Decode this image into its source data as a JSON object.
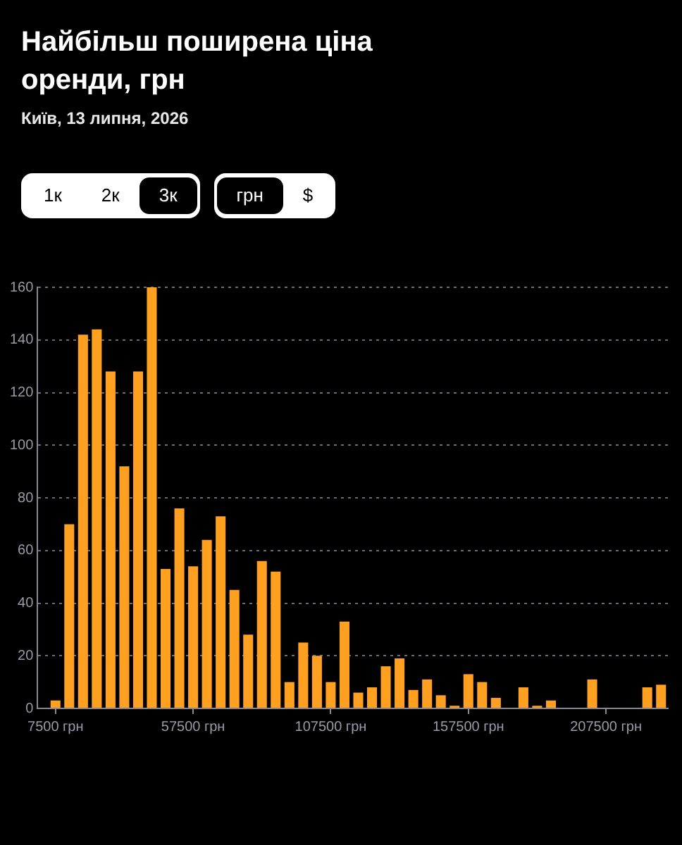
{
  "chart_data": {
    "type": "histogram",
    "title": "Найбільш поширена ціна оренди, грн",
    "subtitle": "Київ, 13 липня, 2026",
    "annotations": [
      "1к",
      "2к",
      "3к",
      "грн",
      "$"
    ],
    "bins": [
      5000,
      10000,
      15000,
      20000,
      25000,
      30000,
      35000,
      40000,
      45000,
      50000,
      55000,
      60000,
      65000,
      70000,
      75000,
      80000,
      85000,
      90000,
      95000,
      100000,
      105000,
      110000,
      115000,
      120000,
      125000,
      130000,
      135000,
      140000,
      145000,
      150000,
      155000,
      160000,
      165000,
      170000,
      175000,
      180000,
      185000,
      190000,
      195000,
      200000,
      205000,
      210000,
      215000,
      220000,
      225000,
      230000
    ],
    "values": [
      3,
      70,
      142,
      144,
      128,
      92,
      128,
      160,
      53,
      76,
      54,
      64,
      73,
      45,
      28,
      56,
      52,
      10,
      25,
      20,
      10,
      33,
      6,
      8,
      16,
      19,
      7,
      11,
      5,
      1,
      13,
      10,
      4,
      0,
      8,
      1,
      3,
      0,
      0,
      11,
      0,
      0,
      0,
      8,
      9
    ],
    "color": "#ffa020",
    "xlim": [
      1000,
      230000
    ],
    "xticks": [
      {
        "value": 7500,
        "label": "7500 грн"
      },
      {
        "value": 57500,
        "label": "57500 грн"
      },
      {
        "value": 107500,
        "label": "107500 грн"
      },
      {
        "value": 157500,
        "label": "157500 грн"
      },
      {
        "value": 207500,
        "label": "207500 грн"
      }
    ],
    "ylim": [
      0,
      160
    ],
    "yticks": [
      0,
      20,
      40,
      60,
      80,
      100,
      120,
      140,
      160
    ],
    "grid": "y"
  }
}
